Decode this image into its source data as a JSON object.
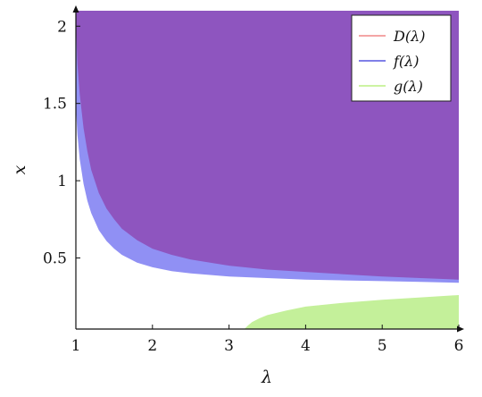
{
  "chart_data": {
    "type": "area",
    "xlabel": "λ",
    "ylabel": "x",
    "xlim": [
      1,
      6
    ],
    "ylim": [
      0.04,
      2.1
    ],
    "x_ticks": [
      1,
      2,
      3,
      4,
      5,
      6
    ],
    "y_ticks": [
      0.5,
      1,
      1.5,
      2
    ],
    "x_tick_labels": [
      "1",
      "2",
      "3",
      "4",
      "5",
      "6"
    ],
    "y_tick_labels": [
      "0.5",
      "1",
      "1.5",
      "2"
    ],
    "grid": false,
    "legend_position": "top-right",
    "series": [
      {
        "name": "D(λ)",
        "color": "#8e55bf",
        "legend_color": "#f4a5a5",
        "x": [
          1.0,
          1.02,
          1.05,
          1.1,
          1.15,
          1.2,
          1.3,
          1.4,
          1.5,
          1.6,
          1.8,
          2.0,
          2.25,
          2.5,
          3.0,
          3.5,
          4.0,
          4.5,
          5.0,
          5.5,
          6.0
        ],
        "lower": [
          2.02,
          1.76,
          1.56,
          1.34,
          1.19,
          1.07,
          0.92,
          0.82,
          0.75,
          0.69,
          0.615,
          0.56,
          0.52,
          0.49,
          0.45,
          0.425,
          0.41,
          0.395,
          0.38,
          0.37,
          0.36
        ],
        "upper": 2.1
      },
      {
        "name": "f(λ)",
        "color": "#7c7cf2",
        "legend_color": "#8080e8",
        "x": [
          1.0,
          1.02,
          1.05,
          1.1,
          1.15,
          1.2,
          1.3,
          1.4,
          1.5,
          1.6,
          1.8,
          2.0,
          2.25,
          2.5,
          3.0,
          3.5,
          4.0,
          4.5,
          5.0,
          5.5,
          6.0
        ],
        "lower": [
          1.48,
          1.3,
          1.14,
          0.98,
          0.87,
          0.79,
          0.68,
          0.61,
          0.56,
          0.52,
          0.47,
          0.44,
          0.415,
          0.4,
          0.38,
          0.37,
          0.36,
          0.355,
          0.35,
          0.345,
          0.34
        ],
        "upper": 2.1
      },
      {
        "name": "g(λ)",
        "color": "#c4f09a",
        "legend_color": "#cdf3a2",
        "x": [
          3.2,
          3.25,
          3.3,
          3.4,
          3.5,
          3.75,
          4.0,
          4.5,
          5.0,
          5.5,
          6.0
        ],
        "lower": 0.04,
        "upper": [
          0.04,
          0.065,
          0.085,
          0.11,
          0.13,
          0.16,
          0.185,
          0.21,
          0.23,
          0.245,
          0.26
        ]
      }
    ]
  }
}
